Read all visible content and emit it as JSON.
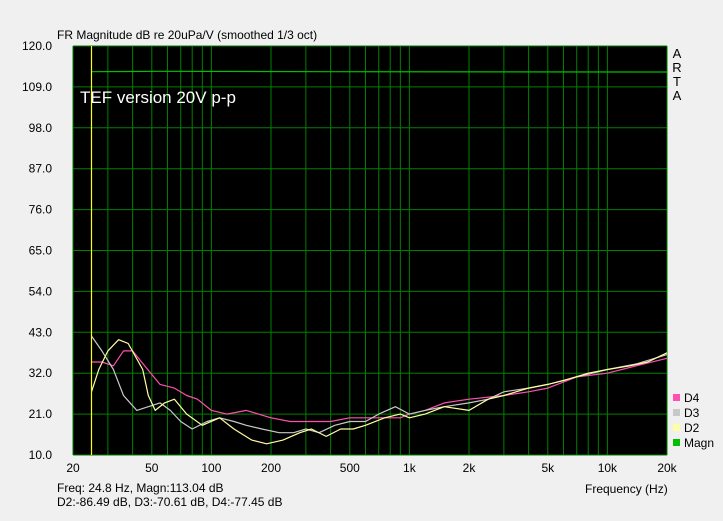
{
  "chart_data": {
    "type": "line",
    "title": "FR Magnitude dB re 20uPa/V (smoothed 1/3 oct)",
    "annotation": "TEF version 20V p-p",
    "brand": "ARTA",
    "xlabel": "Frequency (Hz)",
    "ylabel": "",
    "xscale": "log",
    "xlim": [
      20,
      20000
    ],
    "ylim": [
      10.0,
      120.0
    ],
    "grid": true,
    "background": "#000000",
    "grid_color": "#008000",
    "legend_position": "bottom-right, outside",
    "y_ticks": [
      "10.0",
      "21.0",
      "32.0",
      "43.0",
      "54.0",
      "65.0",
      "76.0",
      "87.0",
      "98.0",
      "109.0",
      "120.0"
    ],
    "x_ticks": [
      {
        "v": 20,
        "label": "20"
      },
      {
        "v": 50,
        "label": "50"
      },
      {
        "v": 100,
        "label": "100"
      },
      {
        "v": 200,
        "label": "200"
      },
      {
        "v": 500,
        "label": "500"
      },
      {
        "v": 1000,
        "label": "1k"
      },
      {
        "v": 2000,
        "label": "2k"
      },
      {
        "v": 5000,
        "label": "5k"
      },
      {
        "v": 10000,
        "label": "10k"
      },
      {
        "v": 20000,
        "label": "20k"
      }
    ],
    "cursor": {
      "freq": 24.8,
      "color": "#ffff00"
    },
    "series": [
      {
        "name": "Magn",
        "color": "#00c000",
        "points": [
          [
            24.8,
            113.1
          ],
          [
            55,
            113.2
          ],
          [
            390,
            113.1
          ],
          [
            20000,
            113.0
          ]
        ]
      },
      {
        "name": "D2",
        "color": "#ffffa0",
        "points": [
          [
            24.8,
            27
          ],
          [
            27,
            33
          ],
          [
            30,
            38
          ],
          [
            34,
            41
          ],
          [
            38,
            40
          ],
          [
            45,
            33
          ],
          [
            48,
            26
          ],
          [
            52,
            22
          ],
          [
            58,
            24
          ],
          [
            65,
            25
          ],
          [
            75,
            21
          ],
          [
            90,
            18
          ],
          [
            110,
            20
          ],
          [
            130,
            17
          ],
          [
            160,
            14
          ],
          [
            190,
            13
          ],
          [
            230,
            14
          ],
          [
            280,
            16
          ],
          [
            320,
            17
          ],
          [
            380,
            15
          ],
          [
            450,
            17
          ],
          [
            520,
            17
          ],
          [
            600,
            18
          ],
          [
            750,
            20
          ],
          [
            900,
            21
          ],
          [
            1000,
            20
          ],
          [
            1200,
            21
          ],
          [
            1500,
            23
          ],
          [
            2000,
            22
          ],
          [
            2500,
            25
          ],
          [
            3000,
            26
          ],
          [
            4000,
            28
          ],
          [
            5000,
            29
          ],
          [
            6000,
            30
          ],
          [
            8000,
            32
          ],
          [
            10000,
            33
          ],
          [
            13000,
            34
          ],
          [
            16000,
            35
          ],
          [
            20000,
            37.5
          ]
        ]
      },
      {
        "name": "D3",
        "color": "#c8c8c8",
        "points": [
          [
            24.8,
            42
          ],
          [
            28,
            38
          ],
          [
            32,
            33
          ],
          [
            36,
            26
          ],
          [
            42,
            22
          ],
          [
            48,
            23
          ],
          [
            55,
            24
          ],
          [
            62,
            22
          ],
          [
            70,
            19
          ],
          [
            80,
            17
          ],
          [
            95,
            19
          ],
          [
            110,
            20
          ],
          [
            130,
            19
          ],
          [
            150,
            18
          ],
          [
            180,
            17
          ],
          [
            220,
            16
          ],
          [
            260,
            16
          ],
          [
            300,
            17
          ],
          [
            350,
            16
          ],
          [
            420,
            18
          ],
          [
            500,
            19
          ],
          [
            600,
            19
          ],
          [
            700,
            21
          ],
          [
            850,
            23
          ],
          [
            1000,
            21
          ],
          [
            1200,
            22
          ],
          [
            1500,
            23
          ],
          [
            2000,
            24
          ],
          [
            2500,
            25
          ],
          [
            3000,
            27
          ],
          [
            4000,
            28
          ],
          [
            5000,
            29
          ],
          [
            7000,
            31
          ],
          [
            10000,
            33
          ],
          [
            14000,
            34.5
          ],
          [
            20000,
            37
          ]
        ]
      },
      {
        "name": "D4",
        "color": "#ff4fb0",
        "points": [
          [
            24.8,
            35
          ],
          [
            28,
            35
          ],
          [
            32,
            34
          ],
          [
            36,
            38
          ],
          [
            40,
            38
          ],
          [
            46,
            34
          ],
          [
            55,
            29
          ],
          [
            65,
            28
          ],
          [
            75,
            26
          ],
          [
            85,
            25
          ],
          [
            100,
            22
          ],
          [
            120,
            21
          ],
          [
            150,
            22
          ],
          [
            200,
            20
          ],
          [
            250,
            19
          ],
          [
            300,
            19
          ],
          [
            350,
            19
          ],
          [
            400,
            19
          ],
          [
            500,
            20
          ],
          [
            700,
            20
          ],
          [
            900,
            20
          ],
          [
            1000,
            21
          ],
          [
            1200,
            22
          ],
          [
            1500,
            24
          ],
          [
            2000,
            25
          ],
          [
            3000,
            26
          ],
          [
            4000,
            27
          ],
          [
            5000,
            28
          ],
          [
            7000,
            31
          ],
          [
            10000,
            32
          ],
          [
            14000,
            34
          ],
          [
            20000,
            36
          ]
        ]
      }
    ],
    "legend": [
      {
        "name": "D4",
        "color": "#ff4fb0"
      },
      {
        "name": "D3",
        "color": "#c8c8c8"
      },
      {
        "name": "D2",
        "color": "#ffffa0"
      },
      {
        "name": "Magn",
        "color": "#00c000"
      }
    ]
  },
  "readout": {
    "line1": "Freq: 24.8 Hz, Magn:113.04 dB",
    "line2": "D2:-86.49 dB, D3:-70.61 dB, D4:-77.45 dB"
  }
}
